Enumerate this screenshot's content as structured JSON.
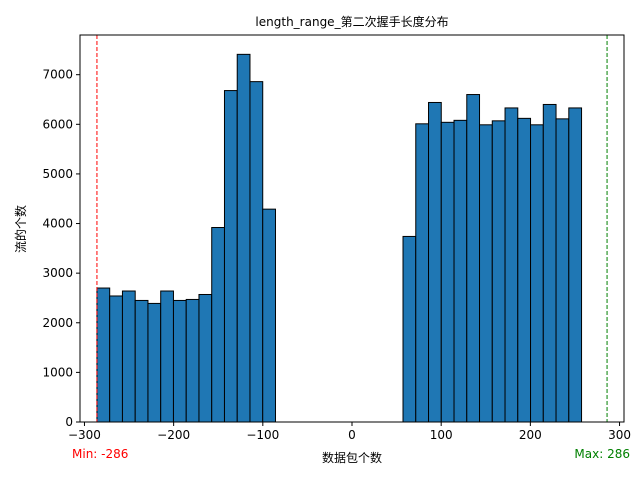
{
  "chart_data": {
    "type": "bar",
    "title": "length_range_第二次握手长度分布",
    "xlabel": "数据包个数",
    "ylabel": "流的个数",
    "xlim": [
      -305,
      305
    ],
    "ylim": [
      0,
      7800
    ],
    "x_ticks": [
      -300,
      -200,
      -100,
      0,
      100,
      200,
      300
    ],
    "x_tick_labels": [
      "−300",
      "−200",
      "−100",
      "0",
      "100",
      "200",
      "300"
    ],
    "y_ticks": [
      0,
      1000,
      2000,
      3000,
      4000,
      5000,
      6000,
      7000
    ],
    "y_tick_labels": [
      "0",
      "1000",
      "2000",
      "3000",
      "4000",
      "5000",
      "6000",
      "7000"
    ],
    "bin_edges": [
      -286,
      -271.7,
      -257.4,
      -243.1,
      -228.8,
      -214.5,
      -200.2,
      -185.9,
      -171.6,
      -157.3,
      -143,
      -128.7,
      -114.4,
      -100.1,
      -85.8,
      -71.5,
      -57.2,
      -42.9,
      -28.6,
      -14.3,
      0,
      14.3,
      28.6,
      42.9,
      57.2,
      71.5,
      85.8,
      100.1,
      114.4,
      128.7,
      143,
      157.3,
      171.6,
      185.9,
      200.2,
      214.5,
      228.8,
      243.1,
      257.4,
      271.7,
      286
    ],
    "counts": [
      2700,
      2540,
      2640,
      2450,
      2390,
      2640,
      2450,
      2470,
      2570,
      3920,
      6680,
      7410,
      6860,
      4290,
      0,
      0,
      0,
      0,
      0,
      0,
      0,
      0,
      0,
      0,
      3740,
      6010,
      6440,
      6040,
      6080,
      6600,
      5990,
      6070,
      6330,
      6120,
      5990,
      6400,
      6110,
      6330,
      0,
      0
    ],
    "min_line": {
      "value": -286,
      "label": "Min: -286",
      "color": "#ff0000"
    },
    "max_line": {
      "value": 286,
      "label": "Max: 286",
      "color": "#008000"
    }
  }
}
